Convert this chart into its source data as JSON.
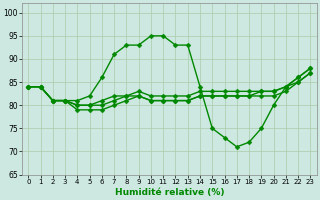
{
  "xlabel": "Humidité relative (%)",
  "bg_color": "#cce8e0",
  "grid_color": "#aaccaa",
  "line_color": "#008800",
  "xlim": [
    -0.5,
    23.5
  ],
  "ylim": [
    65,
    102
  ],
  "yticks": [
    65,
    70,
    75,
    80,
    85,
    90,
    95,
    100
  ],
  "xticks": [
    0,
    1,
    2,
    3,
    4,
    5,
    6,
    7,
    8,
    9,
    10,
    11,
    12,
    13,
    14,
    15,
    16,
    17,
    18,
    19,
    20,
    21,
    22,
    23
  ],
  "series": [
    [
      84,
      84,
      81,
      81,
      81,
      82,
      86,
      91,
      93,
      93,
      95,
      95,
      93,
      93,
      84,
      75,
      73,
      71,
      72,
      75,
      80,
      84,
      86,
      88
    ],
    [
      84,
      84,
      81,
      81,
      80,
      80,
      81,
      82,
      82,
      83,
      82,
      82,
      82,
      82,
      83,
      83,
      83,
      83,
      83,
      83,
      83,
      84,
      86,
      88
    ],
    [
      84,
      84,
      81,
      81,
      80,
      80,
      80,
      81,
      82,
      82,
      81,
      81,
      81,
      81,
      82,
      82,
      82,
      82,
      82,
      83,
      83,
      84,
      85,
      87
    ],
    [
      84,
      84,
      81,
      81,
      79,
      79,
      79,
      80,
      81,
      82,
      81,
      81,
      81,
      81,
      82,
      82,
      82,
      82,
      82,
      82,
      82,
      83,
      85,
      87
    ]
  ]
}
